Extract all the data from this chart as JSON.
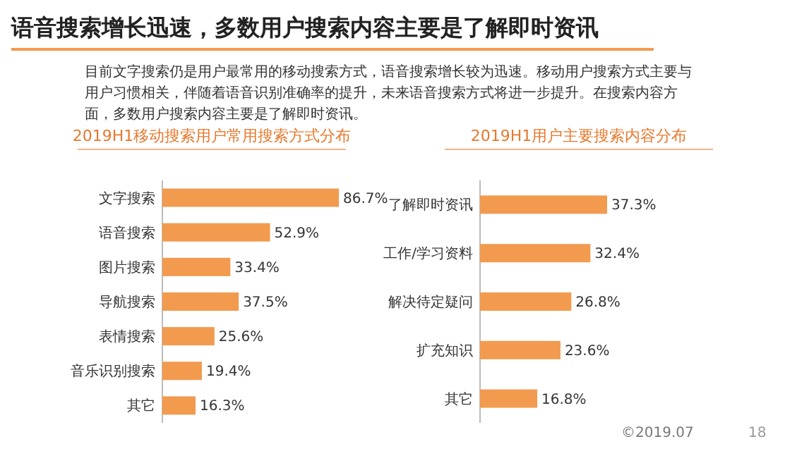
{
  "chart_data": [
    {
      "type": "bar",
      "orientation": "horizontal",
      "title": "2019H1移动搜索用户常用搜索方式分布",
      "color": "#f29a4e",
      "categories": [
        "文字搜索",
        "语音搜索",
        "图片搜索",
        "导航搜索",
        "表情搜索",
        "音乐识别搜索",
        "其它"
      ],
      "values": [
        86.7,
        52.9,
        33.4,
        37.5,
        25.6,
        19.4,
        16.3
      ],
      "value_labels": [
        "86.7%",
        "52.9%",
        "33.4%",
        "37.5%",
        "25.6%",
        "19.4%",
        "16.3%"
      ],
      "annotations": [
        "语音搜索增长迅速，多数用户搜索内容主要是了解即时资讯",
        "目前文字搜索仍是用户最常用的移动搜索方式，语音搜索增长较为迅速。移动用户搜索方式主要与用户习惯相关，伴随着语音识别准确率的提升，未来语音搜索方式将进一步提升。在搜索内容方面，多数用户搜索内容主要是了解即时资讯。"
      ]
    },
    {
      "type": "bar",
      "orientation": "horizontal",
      "title": "2019H1用户主要搜索内容分布",
      "color": "#f29a4e",
      "categories": [
        "了解即时资讯",
        "工作/学习资料",
        "解决待定疑问",
        "扩充知识",
        "其它"
      ],
      "values": [
        37.3,
        32.4,
        26.8,
        23.6,
        16.8
      ],
      "value_labels": [
        "37.3%",
        "32.4%",
        "26.8%",
        "23.6%",
        "16.8%"
      ],
      "annotations": [
        "©2019.07",
        "18"
      ]
    }
  ]
}
